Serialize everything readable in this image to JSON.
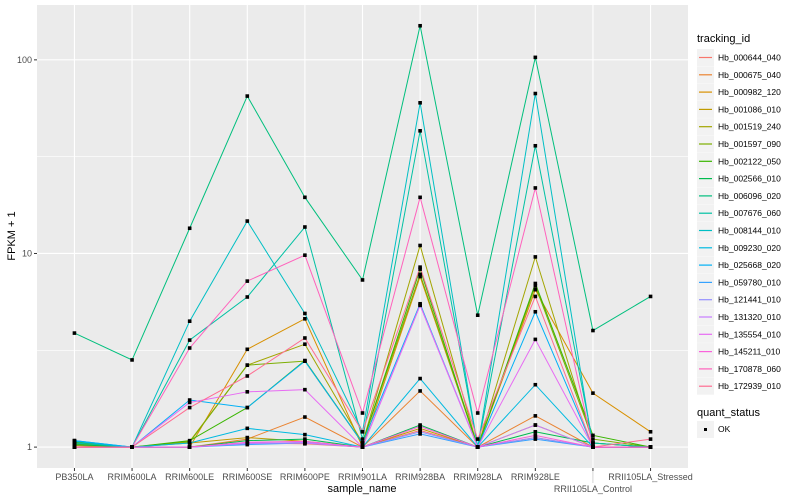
{
  "chart_data": {
    "type": "line",
    "title": "",
    "xlabel": "sample_name",
    "ylabel": "FPKM + 1",
    "yscale": "log10",
    "ylim": [
      0.78,
      192
    ],
    "yticks": [
      1,
      10,
      100
    ],
    "ytick_labels": [
      "1",
      "10",
      "100"
    ],
    "grid": true,
    "legend_position": "right",
    "categories": [
      "PB350LA",
      "RRIM600LA",
      "RRIM600LE",
      "RRIM600SE",
      "RRIM600PE",
      "RRIM901LA",
      "RRIM928BA",
      "RRIM928LA",
      "RRIM928LE",
      "RRII105LA_Control",
      "RRII105LA_Stressed"
    ],
    "legend_title": "tracking_id",
    "shape_legend_title": "quant_status",
    "shape_legend_items": [
      "OK"
    ],
    "series": [
      {
        "name": "Hb_000644_040",
        "color": "#F8766D",
        "values": [
          1.02,
          1,
          1.0,
          1.05,
          1.04,
          1.0,
          1.22,
          1.0,
          1.12,
          1.0,
          1.0
        ]
      },
      {
        "name": "Hb_000675_040",
        "color": "#EA8331",
        "values": [
          1.0,
          1,
          1.0,
          1.1,
          1.43,
          1.0,
          1.95,
          1.0,
          1.45,
          1.0,
          1.0
        ]
      },
      {
        "name": "Hb_000982_120",
        "color": "#D89000",
        "values": [
          1.0,
          1,
          1.0,
          3.2,
          4.6,
          1.0,
          7.6,
          1.0,
          6.5,
          1.9,
          1.2
        ]
      },
      {
        "name": "Hb_001086_010",
        "color": "#C09B00",
        "values": [
          1.02,
          1,
          1.05,
          1.12,
          1.07,
          1.0,
          1.25,
          1.0,
          1.3,
          1.0,
          1.0
        ]
      },
      {
        "name": "Hb_001519_240",
        "color": "#A3A500",
        "values": [
          1.05,
          1,
          1.07,
          2.65,
          3.4,
          1.05,
          11,
          1.0,
          9.6,
          1.05,
          1.0
        ]
      },
      {
        "name": "Hb_001597_090",
        "color": "#7CAE00",
        "values": [
          1.04,
          1,
          1.06,
          2.65,
          2.78,
          1.05,
          7.8,
          1.0,
          6.8,
          1.1,
          1.0
        ]
      },
      {
        "name": "Hb_002122_050",
        "color": "#39B600",
        "values": [
          1.06,
          1,
          1.08,
          1.6,
          2.8,
          1.05,
          8.3,
          1.0,
          7.0,
          1.15,
          1.0
        ]
      },
      {
        "name": "Hb_002566_010",
        "color": "#00BB4E",
        "values": [
          1.03,
          1,
          1.0,
          1.08,
          1.1,
          1.0,
          1.3,
          1.0,
          1.2,
          1.05,
          1.0
        ]
      },
      {
        "name": "Hb_006096_020",
        "color": "#00BF7D",
        "values": [
          3.88,
          2.82,
          13.5,
          65,
          19.5,
          7.3,
          150,
          4.8,
          103,
          4.0,
          6.0
        ]
      },
      {
        "name": "Hb_007676_060",
        "color": "#00C1A3",
        "values": [
          1.05,
          1,
          3.57,
          5.96,
          13.7,
          1.1,
          43,
          1.0,
          36,
          1.05,
          1.0
        ]
      },
      {
        "name": "Hb_008144_010",
        "color": "#00BFC4",
        "values": [
          1.07,
          1,
          4.47,
          14.7,
          4.9,
          1.2,
          60,
          1.0,
          67,
          1.0,
          1.0
        ]
      },
      {
        "name": "Hb_009230_020",
        "color": "#00BAE0",
        "values": [
          1.08,
          1,
          1.05,
          1.25,
          1.16,
          1.0,
          2.26,
          1.0,
          2.1,
          1.0,
          1.0
        ]
      },
      {
        "name": "Hb_025668_020",
        "color": "#00B0F6",
        "values": [
          1.08,
          1,
          1.75,
          1.6,
          2.78,
          1.05,
          5.5,
          1.0,
          5.0,
          1.0,
          1.0
        ]
      },
      {
        "name": "Hb_059780_010",
        "color": "#35A2FF",
        "values": [
          1.0,
          1,
          1.0,
          1.03,
          1.05,
          1.0,
          1.17,
          1.0,
          1.1,
          1.0,
          1.0
        ]
      },
      {
        "name": "Hb_121441_010",
        "color": "#9590FF",
        "values": [
          1.0,
          1,
          1.0,
          1.04,
          1.06,
          1.0,
          1.2,
          1.0,
          1.12,
          1.0,
          1.0
        ]
      },
      {
        "name": "Hb_131320_010",
        "color": "#C77CFF",
        "values": [
          1.0,
          1,
          1.0,
          1.05,
          1.05,
          1.0,
          5.4,
          1.0,
          1.3,
          1.0,
          1.0
        ]
      },
      {
        "name": "Hb_135554_010",
        "color": "#E76BF3",
        "values": [
          1.0,
          1,
          1.7,
          1.93,
          1.98,
          1.0,
          5.4,
          1.0,
          3.6,
          1.0,
          1.0
        ]
      },
      {
        "name": "Hb_145211_010",
        "color": "#FA62DB",
        "values": [
          1.0,
          1,
          1.0,
          1.06,
          1.07,
          1.0,
          1.28,
          1.0,
          1.15,
          1.0,
          1.0
        ]
      },
      {
        "name": "Hb_170878_060",
        "color": "#FF62BC",
        "values": [
          1.0,
          1,
          3.25,
          7.2,
          9.8,
          1.5,
          19.5,
          1.5,
          21.8,
          1.0,
          1.0
        ]
      },
      {
        "name": "Hb_172939_010",
        "color": "#FF6C91",
        "values": [
          1.0,
          1,
          1.6,
          2.33,
          3.66,
          1.2,
          8.5,
          1.1,
          6.0,
          1.0,
          1.1
        ]
      }
    ]
  }
}
